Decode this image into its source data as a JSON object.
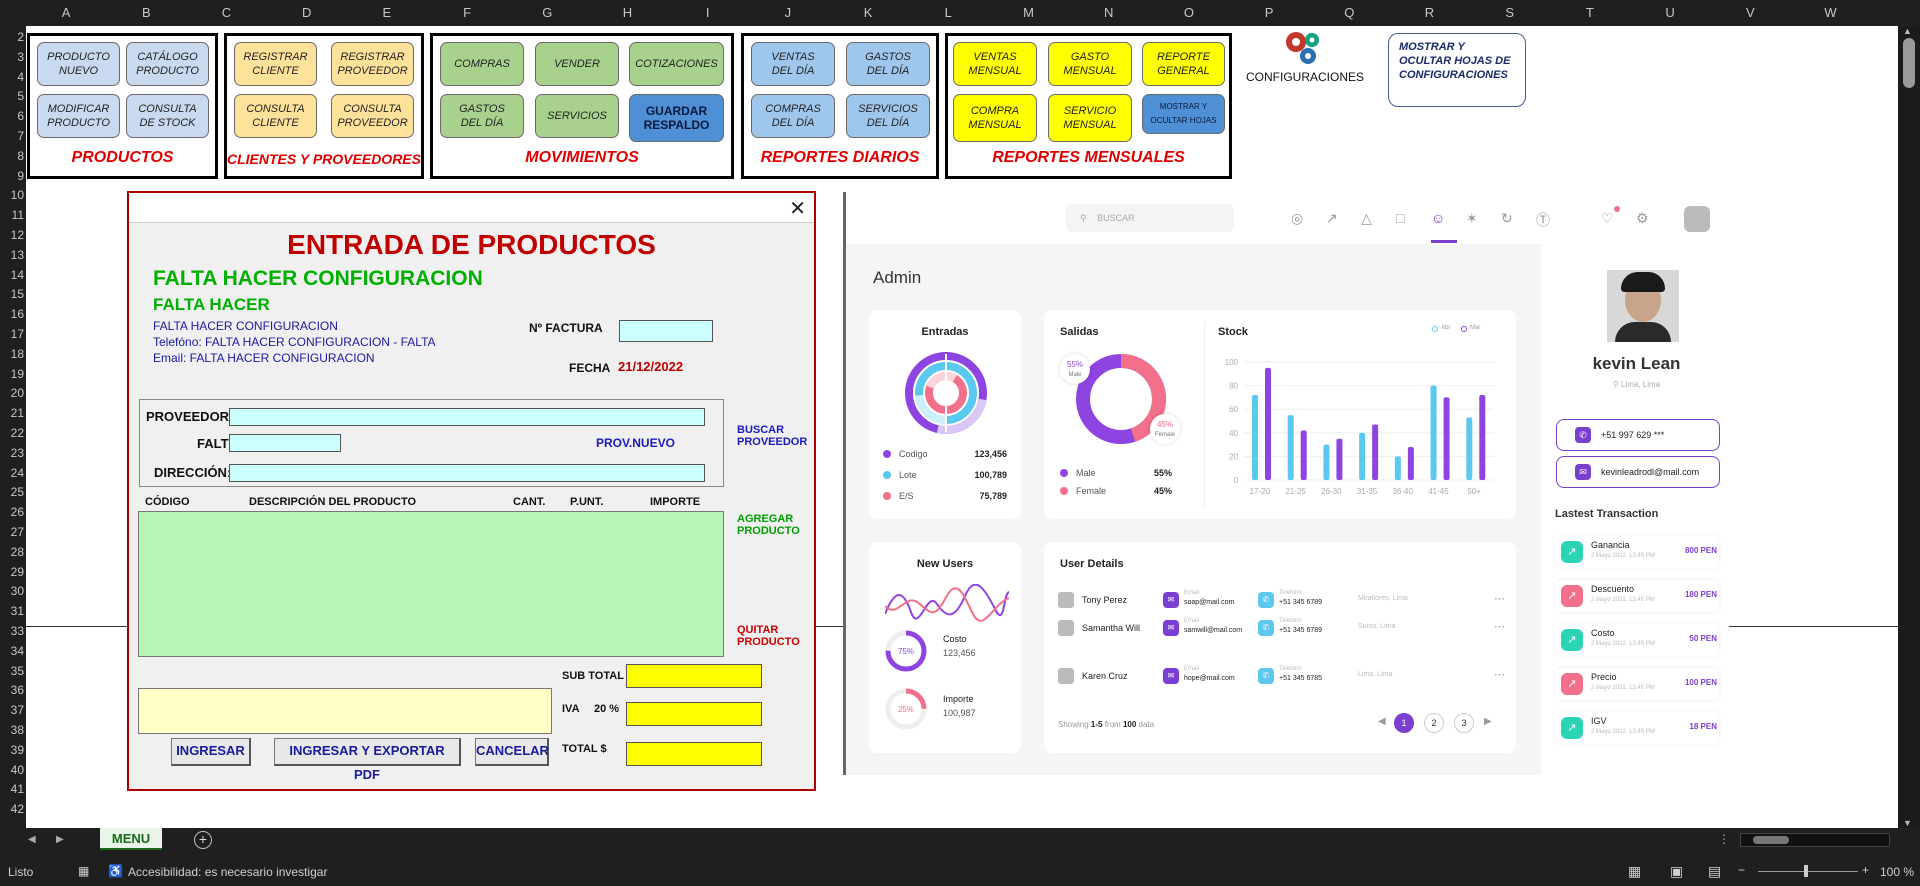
{
  "sheet": {
    "columns": [
      "A",
      "B",
      "C",
      "D",
      "E",
      "F",
      "G",
      "H",
      "I",
      "J",
      "K",
      "L",
      "M",
      "N",
      "O",
      "P",
      "Q",
      "R",
      "S",
      "T",
      "U",
      "V",
      "W"
    ],
    "rows": [
      "2",
      "3",
      "4",
      "5",
      "6",
      "7",
      "8",
      "9",
      "10",
      "11",
      "12",
      "13",
      "14",
      "15",
      "16",
      "17",
      "18",
      "19",
      "20",
      "21",
      "22",
      "23",
      "24",
      "25",
      "26",
      "27",
      "28",
      "29",
      "30",
      "31",
      "33",
      "34",
      "35",
      "36",
      "37",
      "38",
      "39",
      "40",
      "41",
      "42"
    ]
  },
  "menu": {
    "productos": {
      "title": "PRODUCTOS",
      "buttons": [
        "PRODUCTO\nNUEVO",
        "CATÁLOGO\nPRODUCTO",
        "MODIFICAR\nPRODUCTO",
        "CONSULTA\nDE STOCK"
      ]
    },
    "clientes": {
      "title": "CLIENTES Y PROVEEDORES",
      "buttons": [
        "REGISTRAR\nCLIENTE",
        "REGISTRAR\nPROVEEDOR",
        "CONSULTA\nCLIENTE",
        "CONSULTA\nPROVEEDOR"
      ]
    },
    "movimientos": {
      "title": "MOVIMIENTOS",
      "buttons": [
        "COMPRAS",
        "VENDER",
        "COTIZACIONES",
        "GASTOS\nDEL DÍA",
        "SERVICIOS",
        "GUARDAR\nRESPALDO"
      ]
    },
    "diarios": {
      "title": "REPORTES DIARIOS",
      "buttons": [
        "VENTAS\nDEL DÍA",
        "GASTOS\nDEL DÍA",
        "COMPRAS\nDEL DÍA",
        "SERVICIOS\nDEL DÍA"
      ]
    },
    "mensuales": {
      "title": "REPORTES MENSUALES",
      "buttons": [
        "VENTAS\nMENSUAL",
        "GASTO\nMENSUAL",
        "REPORTE\nGENERAL",
        "COMPRA\nMENSUAL",
        "SERVICIO\nMENSUAL",
        "MOSTRAR Y\nOCULTAR HOJAS"
      ]
    },
    "configuraciones": "CONFIGURACIONES",
    "mostrar_ocultar": "MOSTRAR Y OCULTAR HOJAS DE CONFIGURACIONES"
  },
  "form": {
    "title": "ENTRADA DE PRODUCTOS",
    "sub1": "FALTA HACER CONFIGURACION",
    "sub2": "FALTA HACER",
    "info1": "FALTA HACER CONFIGURACION",
    "info2": "Telefóno: FALTA HACER CONFIGURACION - FALTA",
    "info3": "Email: FALTA HACER CONFIGURACION",
    "factura_label": "Nº FACTURA",
    "fecha_label": "FECHA",
    "fecha_value": "21/12/2022",
    "proveedor_label": "PROVEEDOR:",
    "falt_label": "FALT",
    "direccion_label": "DIRECCIÓN:",
    "prov_nuevo": "PROV.NUEVO",
    "buscar_proveedor": "BUSCAR\nPROVEEDOR",
    "col_codigo": "CÓDIGO",
    "col_desc": "DESCRIPCIÓN DEL PRODUCTO",
    "col_cant": "CANT.",
    "col_punt": "P.UNT.",
    "col_importe": "IMPORTE",
    "agregar": "AGREGAR\nPRODUCTO",
    "quitar": "QUITAR\nPRODUCTO",
    "subtotal_label": "SUB TOTAL",
    "iva_label": "IVA",
    "iva_pct": "20 %",
    "total_label": "TOTAL $",
    "btn_ingresar": "INGRESAR",
    "btn_exportar": "INGRESAR Y EXPORTAR PDF",
    "btn_cancelar": "CANCELAR"
  },
  "dashboard": {
    "search_placeholder": "BUSCAR",
    "heading": "Admin",
    "entradas": {
      "title": "Entradas",
      "items": [
        {
          "label": "Codigo",
          "value": "123,456"
        },
        {
          "label": "Lote",
          "value": "100,789"
        },
        {
          "label": "E/S",
          "value": "75,789"
        }
      ]
    },
    "salidas": {
      "title": "Salidas",
      "male_pct": "55%",
      "male_tag": "Male",
      "female_pct": "45%",
      "female_tag": "Female",
      "legend": [
        {
          "label": "Male",
          "value": "55%"
        },
        {
          "label": "Female",
          "value": "45%"
        }
      ]
    },
    "stock": {
      "title": "Stock",
      "legend": [
        "Abr",
        "Mar"
      ]
    },
    "new_users": {
      "title": "New Users",
      "costo_label": "Costo",
      "costo_value": "123,456",
      "costo_pct": "75%",
      "importe_label": "Importe",
      "importe_value": "100,987",
      "importe_pct": "25%"
    },
    "user_details": {
      "title": "User Details",
      "users": [
        {
          "name": "Tony Perez",
          "email": "soap@mail.com",
          "phone": "+51 345 6789",
          "loc": "Miraflores, Lima"
        },
        {
          "name": "Samantha Will",
          "email": "samwill@mail.com",
          "phone": "+51 345 6789",
          "loc": "Surco, Lima"
        },
        {
          "name": "Karen Cruz",
          "email": "hope@mail.com",
          "phone": "+51 345 6785",
          "loc": "Lima, Lima"
        }
      ],
      "email_label": "Email",
      "phone_label": "Telefono",
      "showing_a": "Showing ",
      "showing_range": "1-5",
      "showing_b": " from ",
      "showing_total": "100",
      "showing_c": " data",
      "pages": [
        "1",
        "2",
        "3"
      ]
    },
    "profile": {
      "name": "kevin Lean",
      "location": "Lima, Lima",
      "phone": "+51  997 629 ***",
      "email": "kevinleadrodl@mail.com"
    },
    "transactions_title": "Lastest Transaction",
    "transactions": [
      {
        "name": "Ganancia",
        "date": "2 Mayo 2022, 13:45 PM",
        "amount": "800 PEN",
        "color": "#2dd4b4"
      },
      {
        "name": "Descuento",
        "date": "2 Mayo 2022, 13:45 PM",
        "amount": "180 PEN",
        "color": "#f2708a"
      },
      {
        "name": "Costo",
        "date": "2 Mayo 2022, 13:45 PM",
        "amount": "50 PEN",
        "color": "#2dd4b4"
      },
      {
        "name": "Precio",
        "date": "2 Mayo 2022, 13:45 PM",
        "amount": "100 PEN",
        "color": "#f2708a"
      },
      {
        "name": "IGV",
        "date": "2 Mayo 2022, 13:45 PM",
        "amount": "18 PEN",
        "color": "#2dd4b4"
      }
    ]
  },
  "chart_data": {
    "type": "bar",
    "title": "Stock",
    "categories": [
      "17-20",
      "21-25",
      "26-30",
      "31-35",
      "36-40",
      "41-45",
      "50+"
    ],
    "series": [
      {
        "name": "Abr",
        "color": "#5bc8ef",
        "values": [
          72,
          55,
          30,
          40,
          20,
          80,
          53
        ]
      },
      {
        "name": "Mar",
        "color": "#8e44e0",
        "values": [
          95,
          42,
          35,
          47,
          28,
          70,
          72
        ]
      }
    ],
    "yticks": [
      "100",
      "80",
      "60",
      "40",
      "20",
      "0"
    ],
    "ylim": [
      0,
      100
    ]
  },
  "status": {
    "sheet_tab": "MENU",
    "ready": "Listo",
    "accessibility": "Accesibilidad: es necesario investigar",
    "zoom": "100 %"
  }
}
